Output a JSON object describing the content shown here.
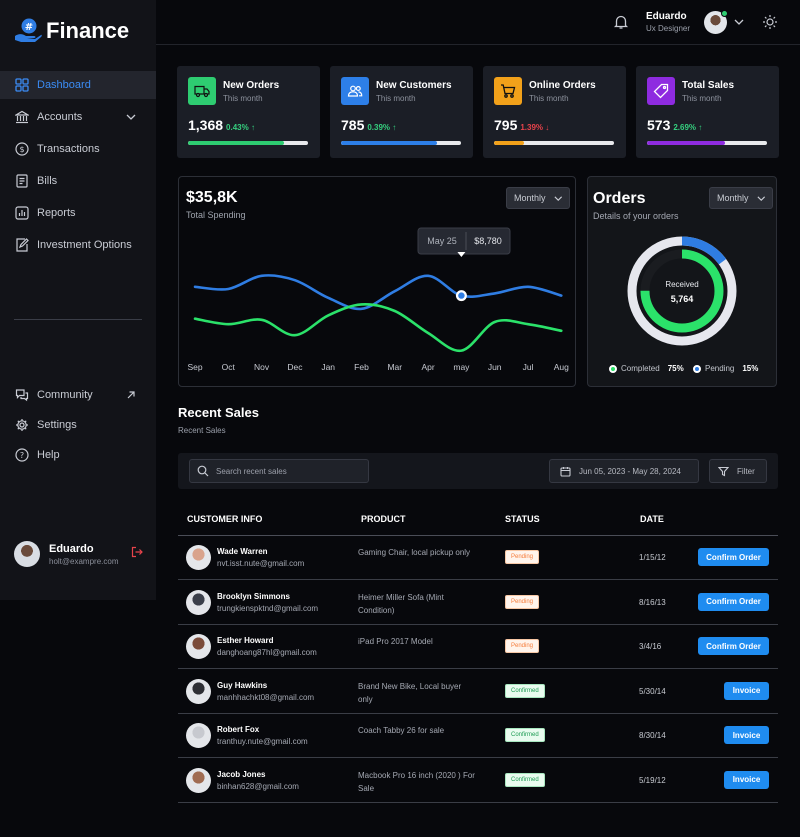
{
  "brand": {
    "name": "Finance"
  },
  "sidebar": {
    "items": [
      {
        "label": "Dashboard",
        "icon": "grid-icon",
        "active": true
      },
      {
        "label": "Accounts",
        "icon": "bank-icon"
      },
      {
        "label": "Transactions",
        "icon": "dollar-circle-icon"
      },
      {
        "label": "Bills",
        "icon": "receipt-icon"
      },
      {
        "label": "Reports",
        "icon": "bar-chart-icon"
      },
      {
        "label": "Investment Options",
        "icon": "edit-document-icon"
      }
    ],
    "bottom_items": [
      {
        "label": "Community",
        "icon": "chat-icon"
      },
      {
        "label": "Settings",
        "icon": "gear-icon"
      },
      {
        "label": "Help",
        "icon": "help-icon"
      }
    ],
    "user": {
      "name": "Eduardo",
      "email": "holt@exampre.com"
    }
  },
  "topbar": {
    "user_name": "Eduardo",
    "user_role": "Ux Designer"
  },
  "stats": [
    {
      "title": "New Orders",
      "subtitle": "This month",
      "value": "1,368",
      "change": "0.43%",
      "direction": "up",
      "change_color": "#35d07f",
      "icon_bg": "#2ecc71",
      "bar_color": "#2ecc71",
      "progress": 0.8
    },
    {
      "title": "New Customers",
      "subtitle": "This month",
      "value": "785",
      "change": "0.39%",
      "direction": "up",
      "change_color": "#35d07f",
      "icon_bg": "#2d7fe8",
      "bar_color": "#2d7fe8",
      "progress": 0.8
    },
    {
      "title": "Online Orders",
      "subtitle": "This month",
      "value": "795",
      "change": "1.39%",
      "direction": "down",
      "change_color": "#e8434b",
      "icon_bg": "#f2a11a",
      "bar_color": "#f2a11a",
      "progress": 0.25
    },
    {
      "title": "Total Sales",
      "subtitle": "This month",
      "value": "573",
      "change": "2.69%",
      "direction": "up",
      "change_color": "#35d07f",
      "icon_bg": "#8e2be0",
      "bar_color": "#8e2be0",
      "progress": 0.65
    }
  ],
  "spending": {
    "amount": "$35,8K",
    "label": "Total Spending",
    "period": "Monthly",
    "tooltip": {
      "date": "May 25",
      "value": "$8,780"
    }
  },
  "chart_data": {
    "type": "line",
    "categories": [
      "Sep",
      "Oct",
      "Nov",
      "Dec",
      "Jan",
      "Feb",
      "Mar",
      "Apr",
      "may",
      "Jun",
      "Jul",
      "Aug"
    ],
    "series": [
      {
        "values": [
          0.62,
          0.6,
          0.72,
          0.68,
          0.52,
          0.42,
          0.58,
          0.72,
          0.54,
          0.56,
          0.62,
          0.54
        ],
        "color": "#2f7de3"
      },
      {
        "values": [
          0.33,
          0.28,
          0.32,
          0.18,
          0.36,
          0.46,
          0.4,
          0.2,
          0.04,
          0.3,
          0.28,
          0.22
        ],
        "color": "#2be26a"
      }
    ],
    "highlight": {
      "category": "may",
      "label": "May 25",
      "value": "$8,780"
    },
    "ylim": [
      0,
      1
    ],
    "grid": true,
    "legend": false
  },
  "orders": {
    "title": "Orders",
    "subtitle": "Details of your orders",
    "period": "Monthly",
    "center_label": "Received",
    "center_value": "5,764",
    "completed_label": "Completed",
    "completed_pct": "75%",
    "pending_label": "Pending",
    "pending_pct": "15%",
    "completed_color": "#2be26a",
    "pending_color": "#2f7de3"
  },
  "recent_sales": {
    "title": "Recent Sales",
    "subtitle": "Recent Sales",
    "search_placeholder": "Search recent sales",
    "date_range": "Jun 05, 2023 - May 28, 2024",
    "filter_label": "Filter",
    "columns": [
      "CUSTOMER INFO",
      "PRODUCT",
      "STATUS",
      "DATE"
    ],
    "rows": [
      {
        "name": "Wade Warren",
        "email": "nvt.isst.nute@gmail.com",
        "product": "Gaming Chair, local pickup only",
        "status": "Pending",
        "date": "1/15/12",
        "action": "Confirm Order"
      },
      {
        "name": "Brooklyn Simmons",
        "email": "trungkienspktnd@gmail.com",
        "product": "Heimer Miller Sofa (Mint Condition)",
        "status": "Pending",
        "date": "8/16/13",
        "action": "Confirm Order"
      },
      {
        "name": "Esther Howard",
        "email": "danghoang87hl@gmail.com",
        "product": "iPad Pro 2017 Model",
        "status": "Pending",
        "date": "3/4/16",
        "action": "Confirm Order"
      },
      {
        "name": "Guy Hawkins",
        "email": "manhhachkt08@gmail.com",
        "product": "Brand New Bike, Local buyer only",
        "status": "Confirmed",
        "date": "5/30/14",
        "action": "Invoice"
      },
      {
        "name": "Robert Fox",
        "email": "tranthuy.nute@gmail.com",
        "product": "Coach Tabby 26 for sale",
        "status": "Confirmed",
        "date": "8/30/14",
        "action": "Invoice"
      },
      {
        "name": "Jacob Jones",
        "email": "binhan628@gmail.com",
        "product": "Macbook Pro 16 inch (2020 ) For Sale",
        "status": "Confirmed",
        "date": "5/19/12",
        "action": "Invoice"
      }
    ]
  }
}
